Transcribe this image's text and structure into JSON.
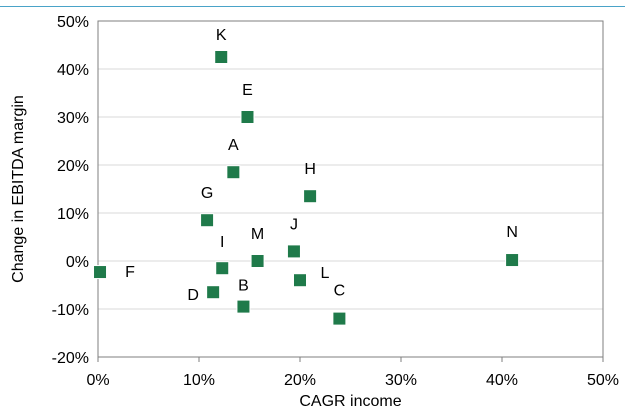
{
  "chart_data": {
    "type": "scatter",
    "title": "",
    "xlabel": "CAGR income",
    "ylabel": "Change in EBITDA margin",
    "xlim": [
      0,
      50
    ],
    "ylim": [
      -20,
      50
    ],
    "x_ticks": [
      "0%",
      "10%",
      "20%",
      "30%",
      "40%",
      "50%"
    ],
    "y_ticks": [
      "-20%",
      "-10%",
      "0%",
      "10%",
      "20%",
      "30%",
      "40%",
      "50%"
    ],
    "grid": "horizontal",
    "legend": "none",
    "marker": "square",
    "marker_color": "#1f7a4a",
    "points": [
      {
        "label": "K",
        "x": 12.2,
        "y": 42.5
      },
      {
        "label": "E",
        "x": 14.8,
        "y": 30.0
      },
      {
        "label": "A",
        "x": 13.4,
        "y": 18.5
      },
      {
        "label": "H",
        "x": 21.0,
        "y": 13.5
      },
      {
        "label": "G",
        "x": 10.8,
        "y": 8.5
      },
      {
        "label": "J",
        "x": 19.4,
        "y": 2.0
      },
      {
        "label": "M",
        "x": 15.8,
        "y": 0.0
      },
      {
        "label": "I",
        "x": 12.3,
        "y": -1.5
      },
      {
        "label": "L",
        "x": 20.0,
        "y": -4.0
      },
      {
        "label": "F",
        "x": 0.2,
        "y": -2.3
      },
      {
        "label": "D",
        "x": 11.4,
        "y": -6.5
      },
      {
        "label": "B",
        "x": 14.4,
        "y": -9.5
      },
      {
        "label": "C",
        "x": 23.9,
        "y": -12.0
      },
      {
        "label": "N",
        "x": 41.0,
        "y": 0.2
      }
    ]
  }
}
